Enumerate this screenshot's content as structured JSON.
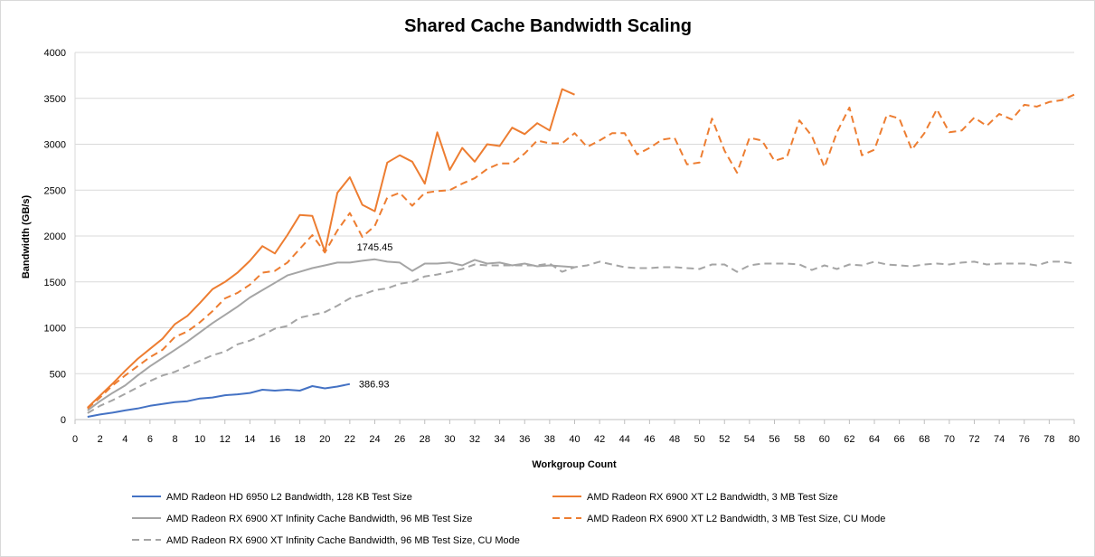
{
  "chart_data": {
    "type": "line",
    "title": "Shared Cache Bandwidth Scaling",
    "xlabel": "Workgroup Count",
    "ylabel": "Bandwidth (GB/s)",
    "xlim": [
      0,
      80
    ],
    "ylim": [
      0,
      4000
    ],
    "x_ticks": [
      0,
      2,
      4,
      6,
      8,
      10,
      12,
      14,
      16,
      18,
      20,
      22,
      24,
      26,
      28,
      30,
      32,
      34,
      36,
      38,
      40,
      42,
      44,
      46,
      48,
      50,
      52,
      54,
      56,
      58,
      60,
      62,
      64,
      66,
      68,
      70,
      72,
      74,
      76,
      78,
      80
    ],
    "y_ticks": [
      0,
      500,
      1000,
      1500,
      2000,
      2500,
      3000,
      3500,
      4000
    ],
    "grid": "horizontal",
    "legend_position": "bottom",
    "series": [
      {
        "name": "AMD Radeon HD 6950 L2 Bandwidth, 128 KB Test Size",
        "color": "#4472c4",
        "dash": "solid",
        "x_start": 1,
        "values": [
          30,
          55,
          75,
          100,
          120,
          150,
          170,
          190,
          200,
          230,
          240,
          265,
          275,
          290,
          325,
          315,
          325,
          315,
          365,
          340,
          360,
          386.93
        ],
        "end_label": "386.93"
      },
      {
        "name": "AMD Radeon RX 6900 XT L2 Bandwidth, 3 MB Test Size",
        "color": "#ed7d31",
        "dash": "solid",
        "x_start": 1,
        "values": [
          130,
          260,
          390,
          530,
          660,
          770,
          880,
          1040,
          1130,
          1270,
          1420,
          1500,
          1600,
          1730,
          1890,
          1810,
          2010,
          2230,
          2220,
          1830,
          2470,
          2640,
          2340,
          2270,
          2800,
          2880,
          2810,
          2570,
          3130,
          2720,
          2960,
          2810,
          3000,
          2980,
          3180,
          3110,
          3230,
          3150,
          3600,
          3540
        ]
      },
      {
        "name": "AMD Radeon RX 6900 XT Infinity Cache Bandwidth, 96 MB Test Size",
        "color": "#a5a5a5",
        "dash": "solid",
        "x_start": 1,
        "values": [
          100,
          200,
          290,
          370,
          480,
          580,
          670,
          760,
          850,
          950,
          1050,
          1140,
          1230,
          1330,
          1410,
          1490,
          1570,
          1610,
          1650,
          1680,
          1710,
          1710,
          1730,
          1745.45,
          1720,
          1710,
          1620,
          1700,
          1700,
          1710,
          1680,
          1740,
          1700,
          1710,
          1680,
          1700,
          1670,
          1680,
          1670,
          1660
        ],
        "peak_label": "1745.45",
        "peak_index": 23
      },
      {
        "name": "AMD Radeon RX 6900 XT L2 Bandwidth, 3 MB Test Size, CU Mode",
        "color": "#ed7d31",
        "dash": "dashed",
        "x_start": 1,
        "values": [
          120,
          240,
          370,
          480,
          580,
          680,
          760,
          900,
          960,
          1060,
          1180,
          1320,
          1380,
          1470,
          1600,
          1620,
          1710,
          1860,
          2010,
          1820,
          2060,
          2250,
          1990,
          2110,
          2420,
          2470,
          2330,
          2470,
          2490,
          2500,
          2570,
          2630,
          2730,
          2790,
          2790,
          2900,
          3040,
          3010,
          3010,
          3120,
          2970,
          3040,
          3120,
          3120,
          2890,
          2960,
          3050,
          3070,
          2780,
          2800,
          3280,
          2930,
          2690,
          3070,
          3040,
          2820,
          2860,
          3260,
          3090,
          2750,
          3130,
          3400,
          2880,
          2940,
          3320,
          3280,
          2940,
          3120,
          3380,
          3130,
          3150,
          3290,
          3200,
          3330,
          3270,
          3430,
          3410,
          3460,
          3480,
          3540
        ]
      },
      {
        "name": "AMD Radeon RX 6900 XT Infinity Cache Bandwidth, 96 MB Test Size, CU Mode",
        "color": "#a5a5a5",
        "dash": "dashed",
        "x_start": 1,
        "values": [
          70,
          150,
          210,
          280,
          350,
          420,
          480,
          520,
          580,
          640,
          700,
          740,
          820,
          860,
          920,
          990,
          1020,
          1110,
          1140,
          1170,
          1240,
          1320,
          1360,
          1410,
          1430,
          1480,
          1500,
          1560,
          1580,
          1610,
          1640,
          1690,
          1680,
          1680,
          1680,
          1680,
          1680,
          1700,
          1610,
          1660,
          1680,
          1720,
          1690,
          1660,
          1650,
          1650,
          1660,
          1660,
          1650,
          1640,
          1690,
          1690,
          1610,
          1680,
          1700,
          1700,
          1700,
          1690,
          1630,
          1680,
          1640,
          1690,
          1680,
          1720,
          1690,
          1680,
          1670,
          1690,
          1700,
          1690,
          1710,
          1720,
          1690,
          1700,
          1700,
          1700,
          1680,
          1720,
          1720,
          1700
        ]
      }
    ]
  }
}
